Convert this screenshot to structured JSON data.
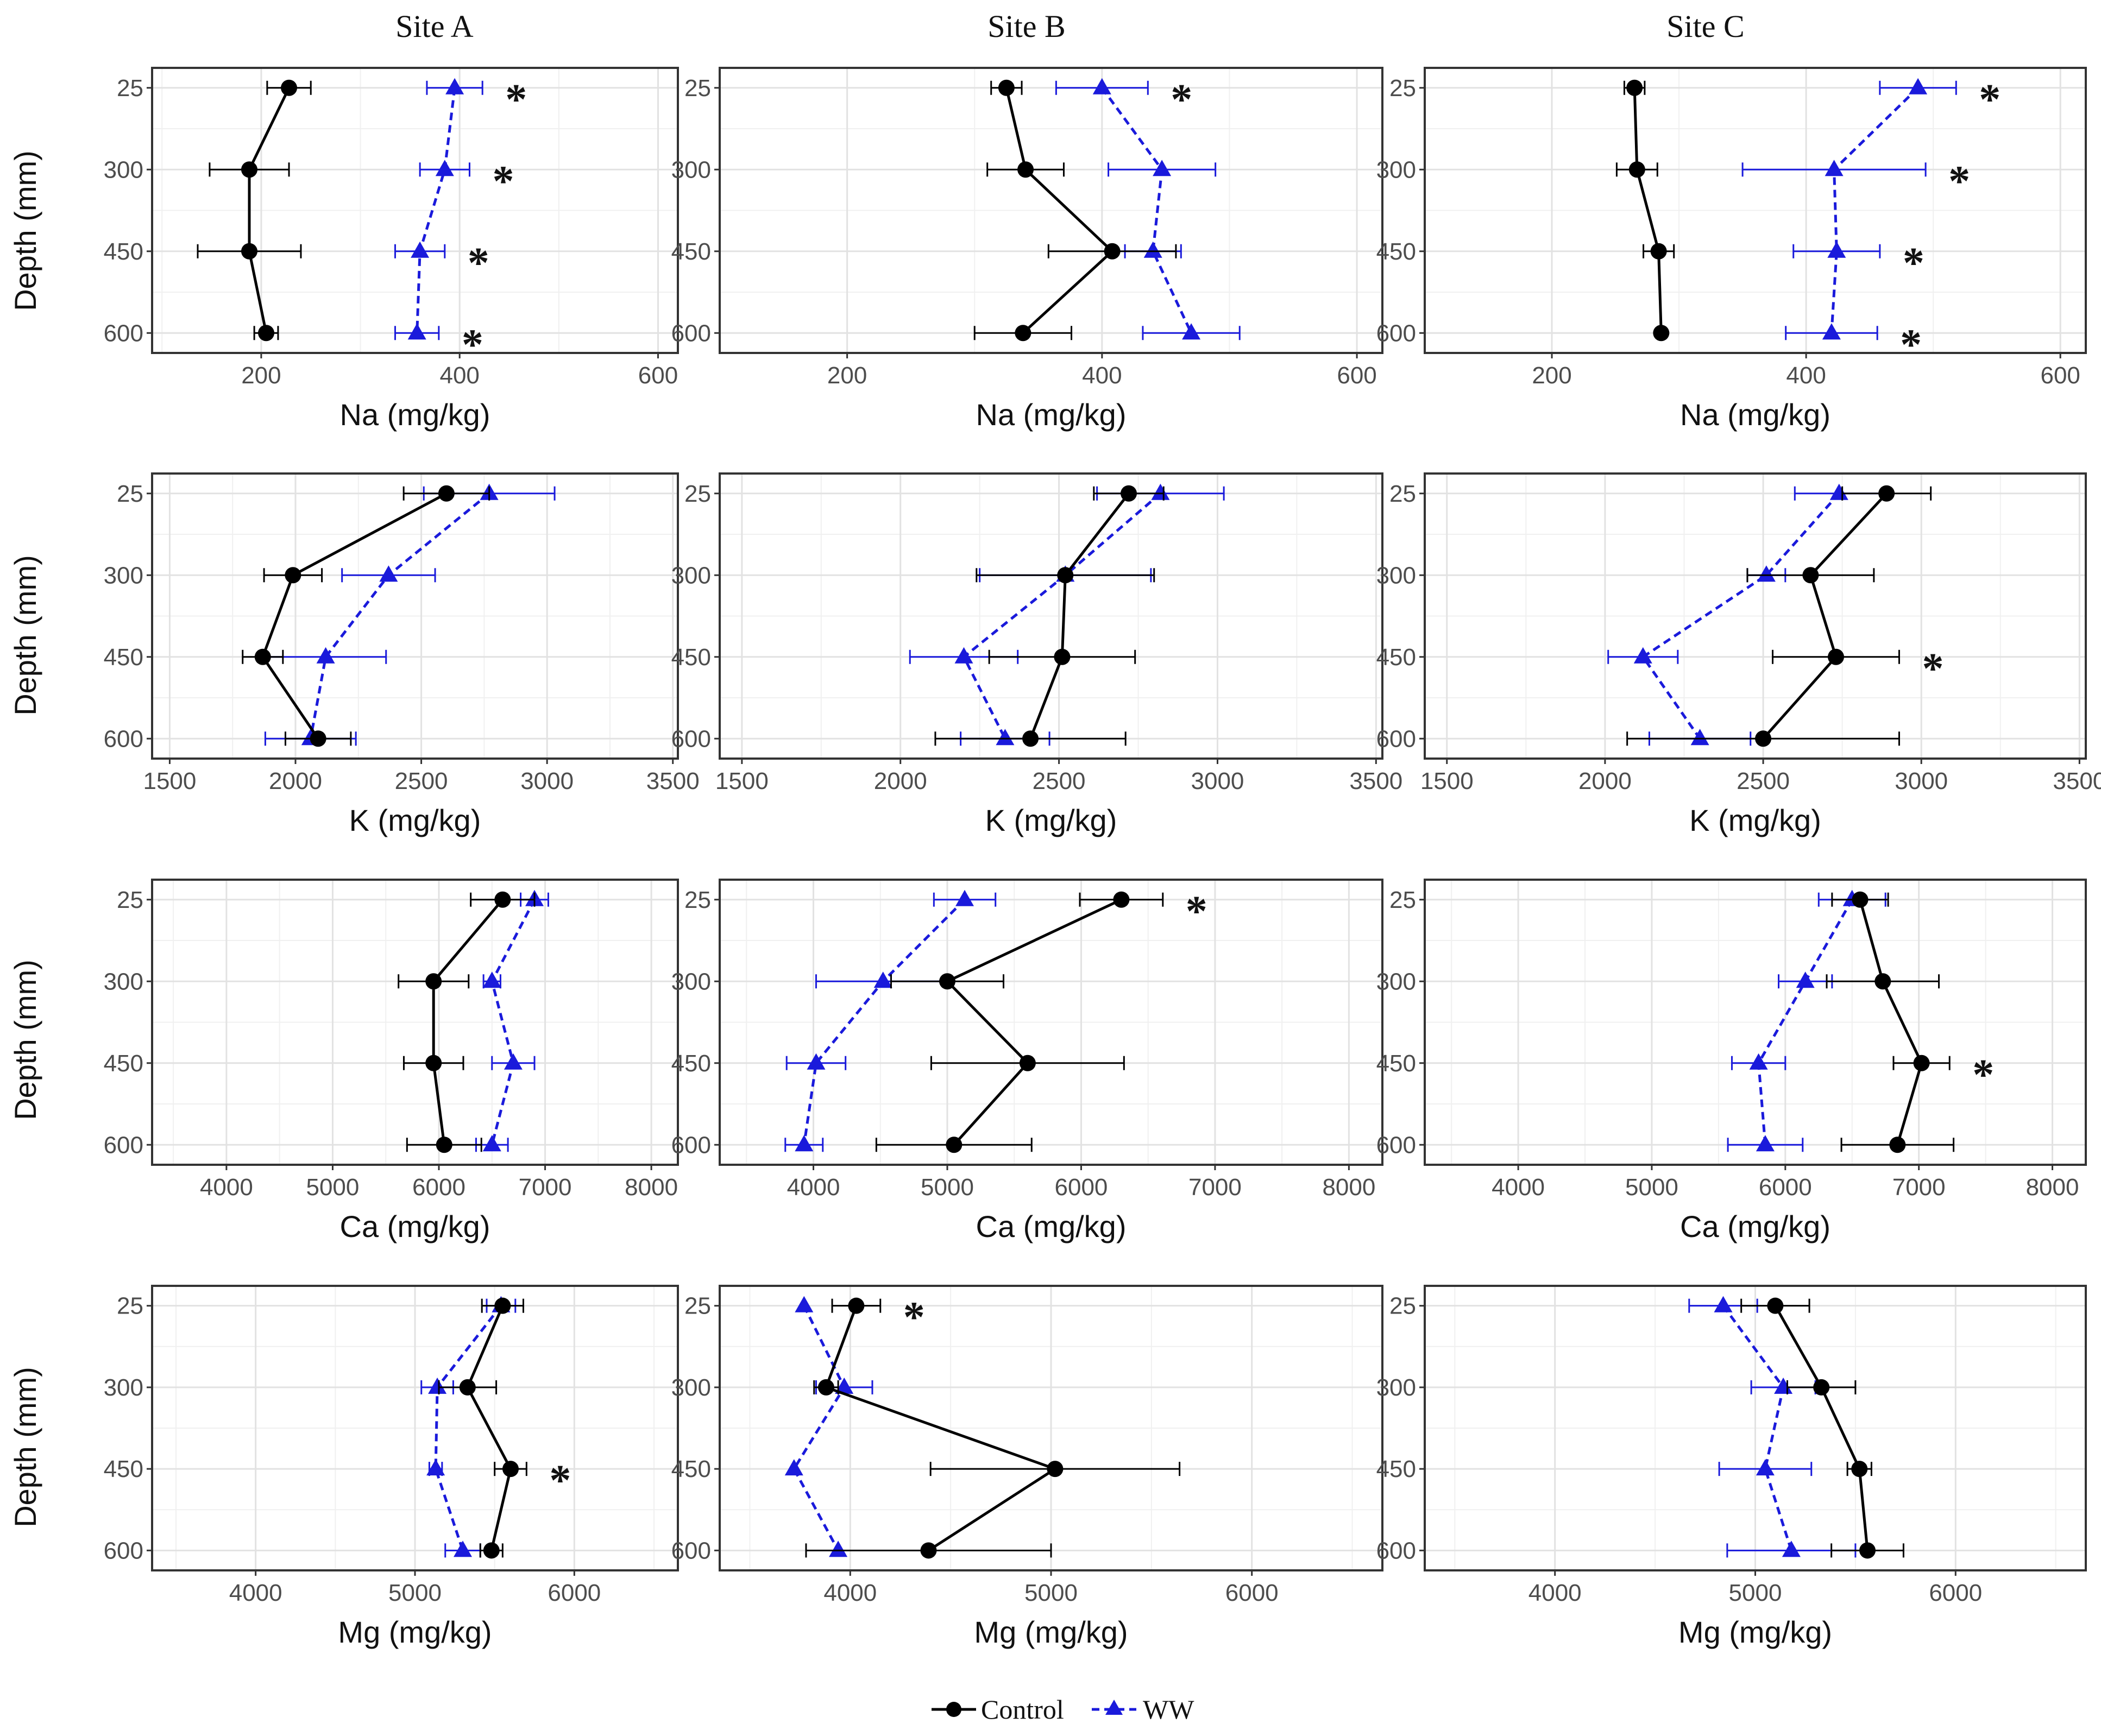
{
  "figure": {
    "site_titles": [
      "Site A",
      "Site B",
      "Site C"
    ],
    "y_axis_label": "Depth (mm)",
    "legend": [
      {
        "name": "Control",
        "color": "#000000",
        "marker": "circle",
        "line": "solid"
      },
      {
        "name": "WW",
        "color": "#1a1adb",
        "marker": "triangle",
        "line": "dashed"
      }
    ]
  },
  "chart_data": [
    {
      "type": "line",
      "site": "Site A",
      "xlabel": "Na (mg/kg)",
      "ylabel": "Depth (mm)",
      "xlim": [
        90,
        620
      ],
      "xticks": [
        200,
        400,
        600
      ],
      "y_categories": [
        "25",
        "300",
        "450",
        "600"
      ],
      "series": [
        {
          "name": "Control",
          "values": [
            228,
            188,
            188,
            205
          ],
          "errors": [
            22,
            40,
            52,
            12
          ]
        },
        {
          "name": "WW",
          "values": [
            395,
            385,
            360,
            357
          ],
          "errors": [
            28,
            25,
            25,
            22
          ]
        }
      ],
      "significant": [
        "25",
        "300",
        "450",
        "600"
      ],
      "sig_label": "*"
    },
    {
      "type": "line",
      "site": "Site B",
      "xlabel": "Na (mg/kg)",
      "ylabel": "Depth (mm)",
      "xlim": [
        100,
        620
      ],
      "xticks": [
        200,
        400,
        600
      ],
      "y_categories": [
        "25",
        "300",
        "450",
        "600"
      ],
      "series": [
        {
          "name": "Control",
          "values": [
            325,
            340,
            408,
            338
          ],
          "errors": [
            12,
            30,
            50,
            38
          ]
        },
        {
          "name": "WW",
          "values": [
            400,
            447,
            440,
            470
          ],
          "errors": [
            36,
            42,
            22,
            38
          ]
        }
      ],
      "significant": [
        "25"
      ],
      "sig_label": "*"
    },
    {
      "type": "line",
      "site": "Site C",
      "xlabel": "Na (mg/kg)",
      "ylabel": "Depth (mm)",
      "xlim": [
        100,
        620
      ],
      "xticks": [
        200,
        400,
        600
      ],
      "y_categories": [
        "25",
        "300",
        "450",
        "600"
      ],
      "series": [
        {
          "name": "Control",
          "values": [
            265,
            267,
            284,
            286
          ],
          "errors": [
            8,
            16,
            12,
            0
          ]
        },
        {
          "name": "WW",
          "values": [
            488,
            422,
            424,
            420
          ],
          "errors": [
            30,
            72,
            34,
            36
          ]
        }
      ],
      "significant": [
        "25",
        "300",
        "450",
        "600"
      ],
      "sig_label": "*"
    },
    {
      "type": "line",
      "site": "Site A",
      "xlabel": "K (mg/kg)",
      "ylabel": "Depth (mm)",
      "xlim": [
        1430,
        3520
      ],
      "xticks": [
        1500,
        2000,
        2500,
        3000,
        3500
      ],
      "y_categories": [
        "25",
        "300",
        "450",
        "600"
      ],
      "series": [
        {
          "name": "Control",
          "values": [
            2600,
            1990,
            1870,
            2090
          ],
          "errors": [
            170,
            115,
            80,
            130
          ]
        },
        {
          "name": "WW",
          "values": [
            2770,
            2370,
            2120,
            2060
          ],
          "errors": [
            260,
            185,
            240,
            180
          ]
        }
      ],
      "significant": [],
      "sig_label": "*"
    },
    {
      "type": "line",
      "site": "Site B",
      "xlabel": "K (mg/kg)",
      "ylabel": "Depth (mm)",
      "xlim": [
        1430,
        3520
      ],
      "xticks": [
        1500,
        2000,
        2500,
        3000,
        3500
      ],
      "y_categories": [
        "25",
        "300",
        "450",
        "600"
      ],
      "series": [
        {
          "name": "Control",
          "values": [
            2720,
            2520,
            2510,
            2410
          ],
          "errors": [
            110,
            280,
            230,
            300
          ]
        },
        {
          "name": "WW",
          "values": [
            2820,
            2520,
            2200,
            2330
          ],
          "errors": [
            200,
            270,
            170,
            140
          ]
        }
      ],
      "significant": [],
      "sig_label": "*"
    },
    {
      "type": "line",
      "site": "Site C",
      "xlabel": "K (mg/kg)",
      "ylabel": "Depth (mm)",
      "xlim": [
        1430,
        3520
      ],
      "xticks": [
        1500,
        2000,
        2500,
        3000,
        3500
      ],
      "y_categories": [
        "25",
        "300",
        "450",
        "600"
      ],
      "series": [
        {
          "name": "Control",
          "values": [
            2890,
            2650,
            2730,
            2500
          ],
          "errors": [
            140,
            200,
            200,
            430
          ]
        },
        {
          "name": "WW",
          "values": [
            2740,
            2510,
            2120,
            2300
          ],
          "errors": [
            140,
            60,
            110,
            160
          ]
        }
      ],
      "significant": [
        "450"
      ],
      "sig_label": "*"
    },
    {
      "type": "line",
      "site": "Site A",
      "xlabel": "Ca (mg/kg)",
      "ylabel": "Depth (mm)",
      "xlim": [
        3300,
        8250
      ],
      "xticks": [
        4000,
        5000,
        6000,
        7000,
        8000
      ],
      "y_categories": [
        "25",
        "300",
        "450",
        "600"
      ],
      "series": [
        {
          "name": "Control",
          "values": [
            6600,
            5950,
            5950,
            6050
          ],
          "errors": [
            300,
            330,
            280,
            350
          ]
        },
        {
          "name": "WW",
          "values": [
            6900,
            6500,
            6700,
            6500
          ],
          "errors": [
            130,
            80,
            200,
            150
          ]
        }
      ],
      "significant": [],
      "sig_label": "*"
    },
    {
      "type": "line",
      "site": "Site B",
      "xlabel": "Ca (mg/kg)",
      "ylabel": "Depth (mm)",
      "xlim": [
        3300,
        8250
      ],
      "xticks": [
        4000,
        5000,
        6000,
        7000,
        8000
      ],
      "y_categories": [
        "25",
        "300",
        "450",
        "600"
      ],
      "series": [
        {
          "name": "Control",
          "values": [
            6300,
            5000,
            5600,
            5050
          ],
          "errors": [
            310,
            420,
            720,
            580
          ]
        },
        {
          "name": "WW",
          "values": [
            5130,
            4520,
            4020,
            3930
          ],
          "errors": [
            230,
            500,
            220,
            140
          ]
        }
      ],
      "significant": [
        "25"
      ],
      "sig_label": "*"
    },
    {
      "type": "line",
      "site": "Site C",
      "xlabel": "Ca (mg/kg)",
      "ylabel": "Depth (mm)",
      "xlim": [
        3300,
        8250
      ],
      "xticks": [
        4000,
        5000,
        6000,
        7000,
        8000
      ],
      "y_categories": [
        "25",
        "300",
        "450",
        "600"
      ],
      "series": [
        {
          "name": "Control",
          "values": [
            6560,
            6730,
            7020,
            6840
          ],
          "errors": [
            210,
            420,
            210,
            420
          ]
        },
        {
          "name": "WW",
          "values": [
            6500,
            6150,
            5800,
            5850
          ],
          "errors": [
            250,
            200,
            200,
            280
          ]
        }
      ],
      "significant": [
        "450"
      ],
      "sig_label": "*"
    },
    {
      "type": "line",
      "site": "Site A",
      "xlabel": "Mg (mg/kg)",
      "ylabel": "Depth (mm)",
      "xlim": [
        3350,
        6650
      ],
      "xticks": [
        4000,
        5000,
        6000
      ],
      "y_categories": [
        "25",
        "300",
        "450",
        "600"
      ],
      "series": [
        {
          "name": "Control",
          "values": [
            5550,
            5330,
            5600,
            5480
          ],
          "errors": [
            130,
            180,
            100,
            70
          ]
        },
        {
          "name": "WW",
          "values": [
            5540,
            5140,
            5130,
            5300
          ],
          "errors": [
            90,
            100,
            40,
            110
          ]
        }
      ],
      "significant": [
        "450"
      ],
      "sig_label": "*"
    },
    {
      "type": "line",
      "site": "Site B",
      "xlabel": "Mg (mg/kg)",
      "ylabel": "Depth (mm)",
      "xlim": [
        3350,
        6650
      ],
      "xticks": [
        4000,
        5000,
        6000
      ],
      "y_categories": [
        "25",
        "300",
        "450",
        "600"
      ],
      "series": [
        {
          "name": "Control",
          "values": [
            4030,
            3880,
            5020,
            4390
          ],
          "errors": [
            120,
            60,
            620,
            610
          ]
        },
        {
          "name": "WW",
          "values": [
            3770,
            3970,
            3720,
            3940
          ],
          "errors": [
            0,
            140,
            0,
            0
          ]
        }
      ],
      "significant": [
        "25"
      ],
      "sig_label": "*"
    },
    {
      "type": "line",
      "site": "Site C",
      "xlabel": "Mg (mg/kg)",
      "ylabel": "Depth (mm)",
      "xlim": [
        3350,
        6650
      ],
      "xticks": [
        4000,
        5000,
        6000
      ],
      "y_categories": [
        "25",
        "300",
        "450",
        "600"
      ],
      "series": [
        {
          "name": "Control",
          "values": [
            5100,
            5330,
            5520,
            5560
          ],
          "errors": [
            170,
            170,
            60,
            180
          ]
        },
        {
          "name": "WW",
          "values": [
            4840,
            5140,
            5050,
            5180
          ],
          "errors": [
            170,
            160,
            230,
            320
          ]
        }
      ],
      "significant": [],
      "sig_label": "*"
    }
  ]
}
